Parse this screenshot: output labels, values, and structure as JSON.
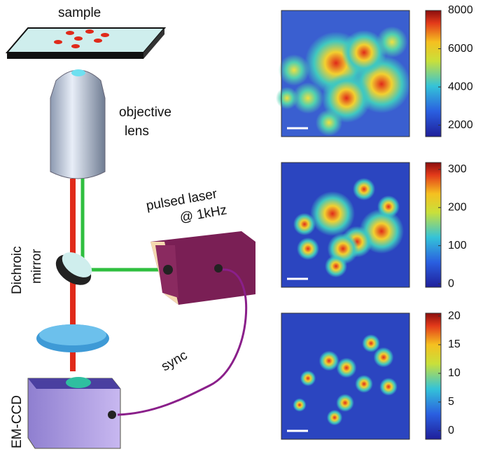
{
  "labels": {
    "sample": "sample",
    "objective": "objective",
    "lens": "lens",
    "laser": "pulsed laser",
    "rate": "@ 1kHz",
    "dichroic": "Dichroic",
    "mirror": "mirror",
    "sync": "sync",
    "camera": "EM-CCD"
  },
  "colorbars": [
    {
      "ylim": [
        1400,
        8000
      ],
      "yticks": [
        2000,
        4000,
        6000,
        8000
      ]
    },
    {
      "ylim": [
        -9,
        318
      ],
      "yticks": [
        0,
        100,
        200,
        300
      ]
    },
    {
      "ylim": [
        -1.5,
        20.5
      ],
      "yticks": [
        0,
        5,
        10,
        15,
        20
      ]
    }
  ]
}
